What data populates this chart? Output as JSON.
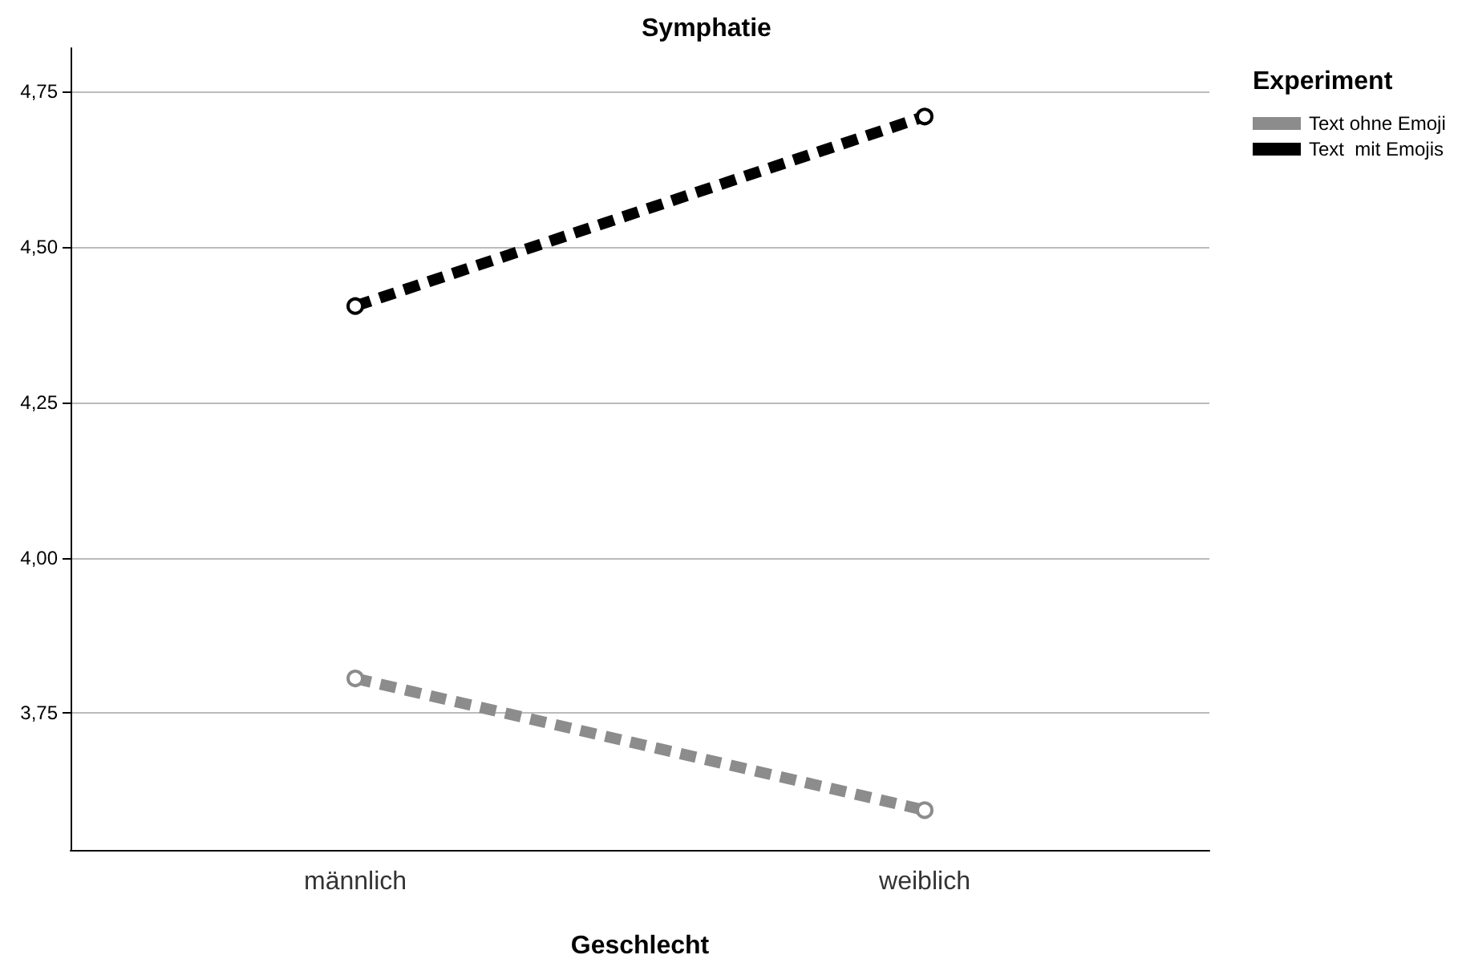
{
  "chart_data": {
    "type": "line",
    "title": "Symphatie",
    "xlabel": "Geschlecht",
    "legend_title": "Experiment",
    "categories": [
      "männlich",
      "weiblich"
    ],
    "series": [
      {
        "name": "Text ohne Emoji",
        "color": "#8c8c8c",
        "values": [
          3.806,
          3.594
        ],
        "line_style": "dashed"
      },
      {
        "name": "Text  mit Emojis",
        "color": "#000000",
        "values": [
          4.405,
          4.71
        ],
        "line_style": "dashed"
      }
    ],
    "ylim": [
      3.53,
      4.82
    ],
    "yticks": [
      {
        "value": 3.75,
        "label": "3,75"
      },
      {
        "value": 4.0,
        "label": "4,00"
      },
      {
        "value": 4.25,
        "label": "4,25"
      },
      {
        "value": 4.5,
        "label": "4,50"
      },
      {
        "value": 4.75,
        "label": "4,75"
      }
    ],
    "grid": "y",
    "legend": "top right",
    "marker": "circle"
  }
}
